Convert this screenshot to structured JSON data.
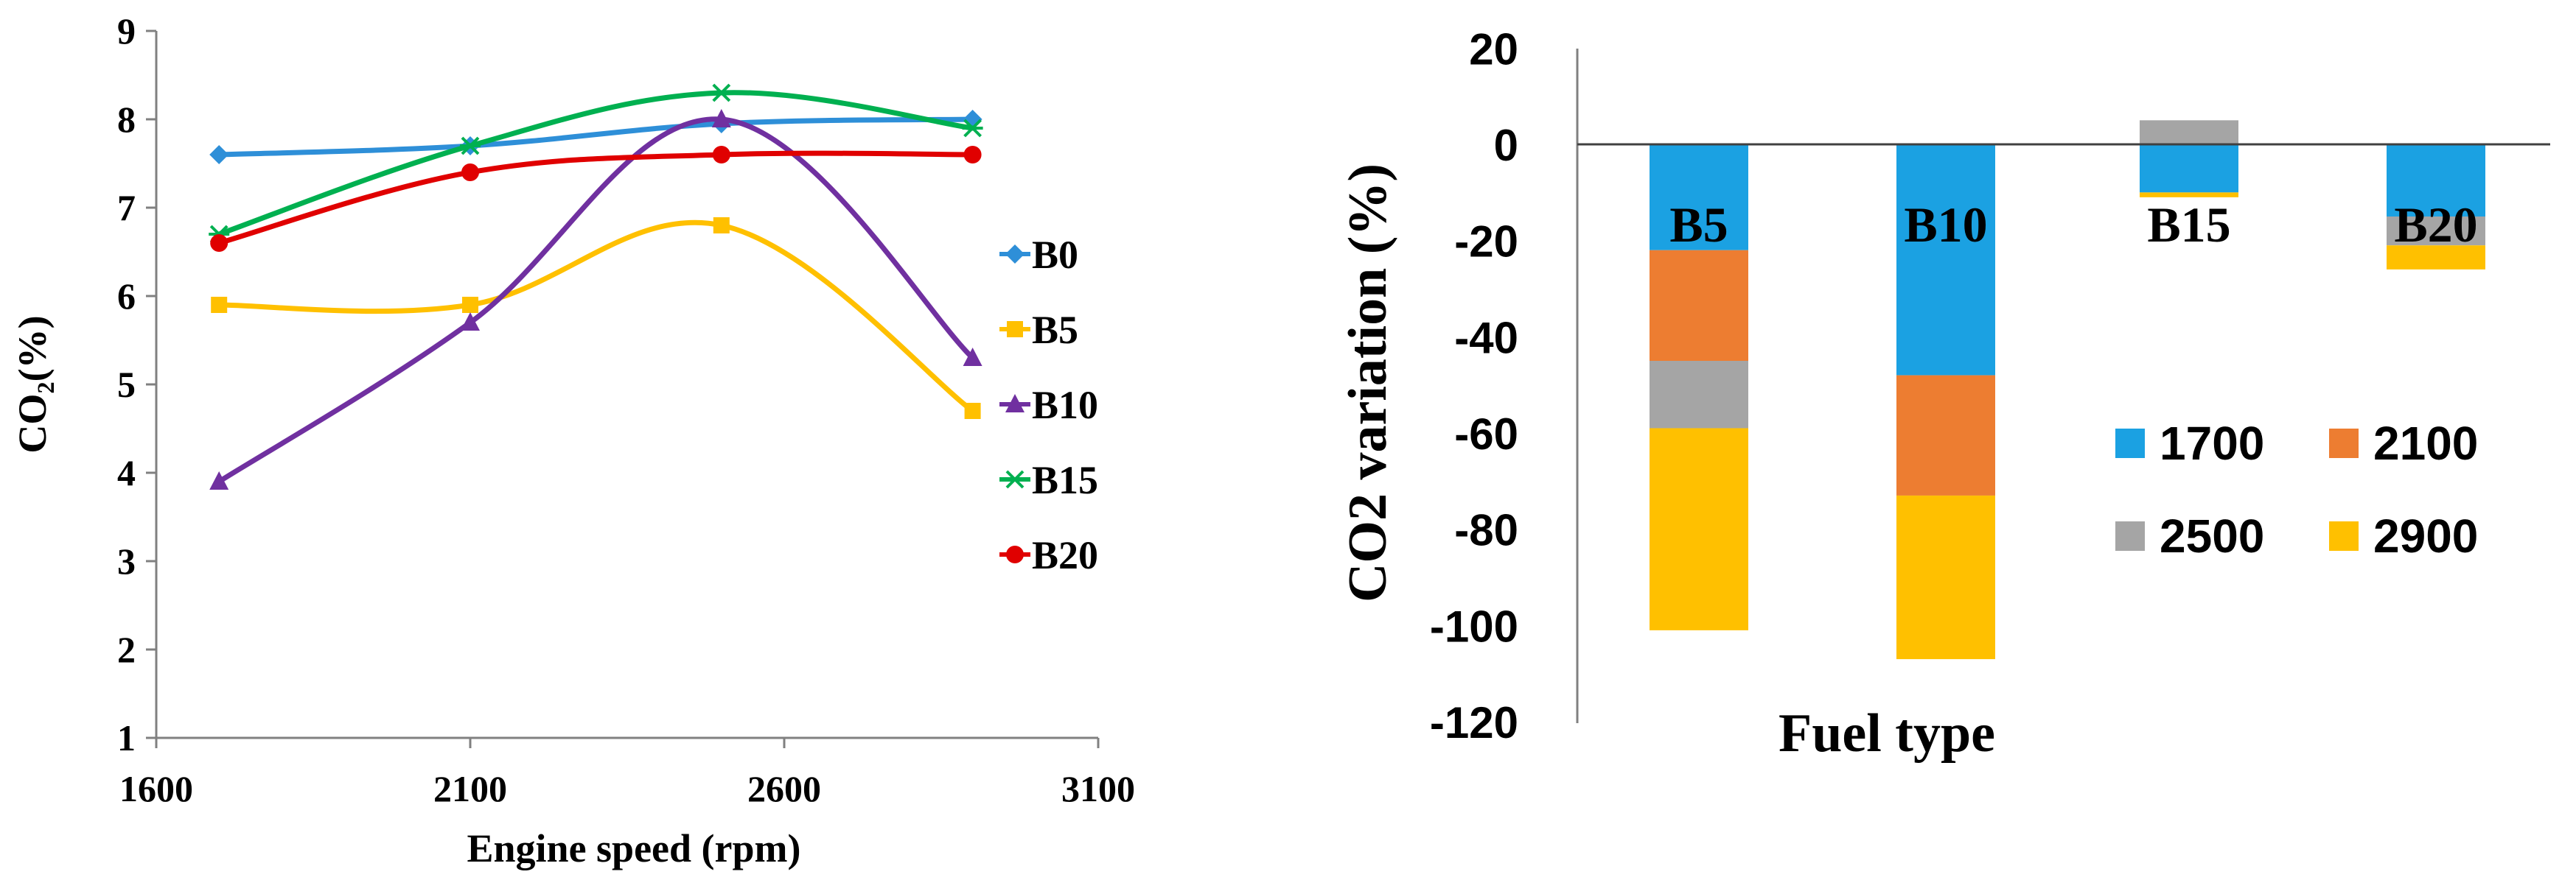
{
  "chart_data": [
    {
      "type": "line",
      "title": "",
      "xlabel": "Engine speed (rpm)",
      "ylabel": "CO₂(%)",
      "xlim": [
        1600,
        3100
      ],
      "ylim": [
        1,
        9
      ],
      "xticks": [
        "1600",
        "2100",
        "2600",
        "3100"
      ],
      "yticks": [
        "1",
        "2",
        "3",
        "4",
        "5",
        "6",
        "7",
        "8",
        "9"
      ],
      "x": [
        1700,
        2100,
        2500,
        2900
      ],
      "legend_position": "right",
      "series": [
        {
          "name": "B0",
          "values": [
            7.6,
            7.7,
            7.95,
            8.0
          ],
          "color": "#2e8fd8",
          "marker": "diamond"
        },
        {
          "name": "B5",
          "values": [
            5.9,
            5.9,
            6.8,
            4.7
          ],
          "color": "#ffc000",
          "marker": "square"
        },
        {
          "name": "B10",
          "values": [
            3.9,
            5.7,
            8.0,
            5.3
          ],
          "color": "#7030a0",
          "marker": "triangle"
        },
        {
          "name": "B15",
          "values": [
            6.7,
            7.7,
            8.3,
            7.9
          ],
          "color": "#00b050",
          "marker": "star"
        },
        {
          "name": "B20",
          "values": [
            6.6,
            7.4,
            7.6,
            7.6
          ],
          "color": "#e00000",
          "marker": "circle"
        }
      ]
    },
    {
      "type": "bar",
      "stacked": true,
      "title": "",
      "xlabel": "Fuel type",
      "ylabel": "CO2 variation (%)",
      "ylim": [
        -120,
        20
      ],
      "yticks": [
        "20",
        "0",
        "-20",
        "-40",
        "-60",
        "-80",
        "-100",
        "-120"
      ],
      "categories": [
        "B5",
        "B10",
        "B15",
        "B20"
      ],
      "legend_position": "right",
      "series": [
        {
          "name": "1700",
          "values": [
            -22,
            -48,
            -10,
            -15
          ],
          "color": "#1ba1e2"
        },
        {
          "name": "2100",
          "values": [
            -23,
            -25,
            0,
            0
          ],
          "color": "#ed7d31"
        },
        {
          "name": "2500",
          "values": [
            -14,
            0,
            5,
            -6
          ],
          "color": "#a5a5a5"
        },
        {
          "name": "2900",
          "values": [
            -42,
            -34,
            -1,
            -5
          ],
          "color": "#ffc000"
        }
      ]
    }
  ]
}
